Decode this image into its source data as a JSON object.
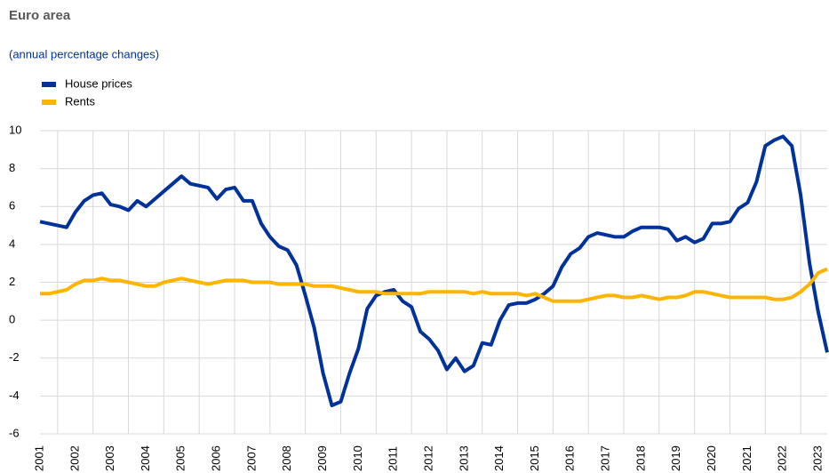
{
  "chart_data": {
    "type": "line",
    "title": "Euro area",
    "subtitle": "(annual percentage changes)",
    "categories": [
      "2001",
      null,
      null,
      null,
      "2002",
      null,
      null,
      null,
      "2003",
      null,
      null,
      null,
      "2004",
      null,
      null,
      null,
      "2005",
      null,
      null,
      null,
      "2006",
      null,
      null,
      null,
      "2007",
      null,
      null,
      null,
      "2008",
      null,
      null,
      null,
      "2009",
      null,
      null,
      null,
      "2010",
      null,
      null,
      null,
      "2011",
      null,
      null,
      null,
      "2012",
      null,
      null,
      null,
      "2013",
      null,
      null,
      null,
      "2014",
      null,
      null,
      null,
      "2015",
      null,
      null,
      null,
      "2016",
      null,
      null,
      null,
      "2017",
      null,
      null,
      null,
      "2018",
      null,
      null,
      null,
      "2019",
      null,
      null,
      null,
      "2020",
      null,
      null,
      null,
      "2021",
      null,
      null,
      null,
      "2022",
      null,
      null,
      null,
      "2023",
      null
    ],
    "series": [
      {
        "name": "House prices",
        "color": "#003299",
        "values": [
          5.2,
          5.1,
          5.0,
          4.9,
          5.7,
          6.3,
          6.6,
          6.7,
          6.1,
          6.0,
          5.8,
          6.3,
          6.0,
          6.4,
          6.8,
          7.2,
          7.6,
          7.2,
          7.1,
          7.0,
          6.4,
          6.9,
          7.0,
          6.3,
          6.3,
          5.1,
          4.4,
          3.9,
          3.7,
          2.9,
          1.3,
          -0.4,
          -2.8,
          -4.5,
          -4.3,
          -2.8,
          -1.5,
          0.6,
          1.3,
          1.5,
          1.6,
          1.0,
          0.7,
          -0.6,
          -1.0,
          -1.6,
          -2.6,
          -2.0,
          -2.7,
          -2.4,
          -1.2,
          -1.3,
          0.0,
          0.8,
          0.9,
          0.9,
          1.1,
          1.4,
          1.8,
          2.8,
          3.5,
          3.8,
          4.4,
          4.6,
          4.5,
          4.4,
          4.4,
          4.7,
          4.9,
          4.9,
          4.9,
          4.8,
          4.2,
          4.4,
          4.1,
          4.3,
          5.1,
          5.1,
          5.2,
          5.9,
          6.2,
          7.3,
          9.2,
          9.5,
          9.7,
          9.2,
          6.6,
          3.0,
          0.4,
          -1.7
        ]
      },
      {
        "name": "Rents",
        "color": "#ffb400",
        "values": [
          1.4,
          1.4,
          1.5,
          1.6,
          1.9,
          2.1,
          2.1,
          2.2,
          2.1,
          2.1,
          2.0,
          1.9,
          1.8,
          1.8,
          2.0,
          2.1,
          2.2,
          2.1,
          2.0,
          1.9,
          2.0,
          2.1,
          2.1,
          2.1,
          2.0,
          2.0,
          2.0,
          1.9,
          1.9,
          1.9,
          1.9,
          1.8,
          1.8,
          1.8,
          1.7,
          1.6,
          1.5,
          1.5,
          1.5,
          1.4,
          1.4,
          1.4,
          1.4,
          1.4,
          1.5,
          1.5,
          1.5,
          1.5,
          1.5,
          1.4,
          1.5,
          1.4,
          1.4,
          1.4,
          1.4,
          1.3,
          1.4,
          1.2,
          1.0,
          1.0,
          1.0,
          1.0,
          1.1,
          1.2,
          1.3,
          1.3,
          1.2,
          1.2,
          1.3,
          1.2,
          1.1,
          1.2,
          1.2,
          1.3,
          1.5,
          1.5,
          1.4,
          1.3,
          1.2,
          1.2,
          1.2,
          1.2,
          1.2,
          1.1,
          1.1,
          1.2,
          1.5,
          1.9,
          2.5,
          2.7
        ]
      }
    ],
    "ylim": [
      -6,
      10
    ],
    "yticks": [
      -6,
      -4,
      -2,
      0,
      2,
      4,
      6,
      8,
      10
    ],
    "grid": true
  }
}
